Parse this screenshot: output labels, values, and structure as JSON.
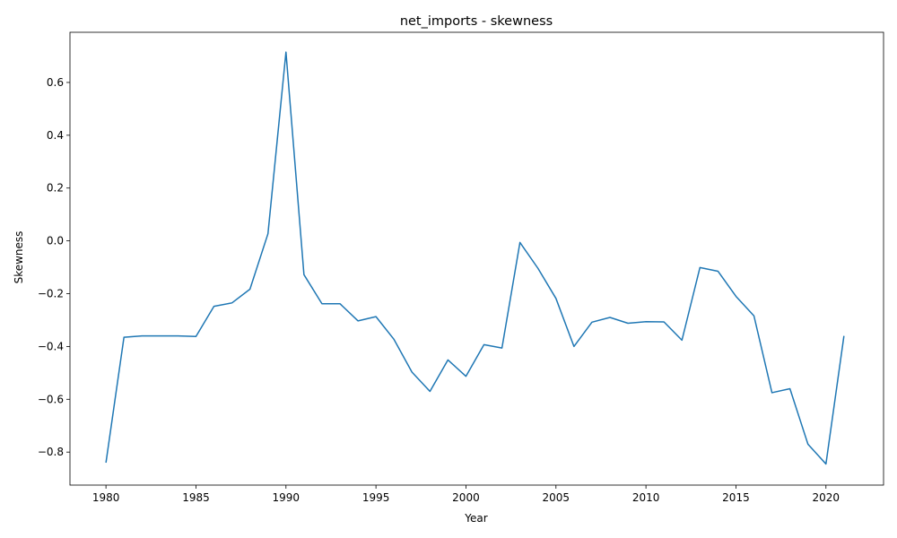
{
  "chart_data": {
    "type": "line",
    "title": "net_imports - skewness",
    "xlabel": "Year",
    "ylabel": "Skewness",
    "xlim": [
      1978,
      2023.2
    ],
    "ylim": [
      -0.925,
      0.79
    ],
    "xticks": [
      1980,
      1985,
      1990,
      1995,
      2000,
      2005,
      2010,
      2015,
      2020
    ],
    "yticks": [
      -0.8,
      -0.6,
      -0.4,
      -0.2,
      0.0,
      0.2,
      0.4,
      0.6
    ],
    "ytick_labels": [
      "−0.8",
      "−0.6",
      "−0.4",
      "−0.2",
      "0.0",
      "0.2",
      "0.4",
      "0.6"
    ],
    "grid": false,
    "line_color": "#1f77b4",
    "series": [
      {
        "x": [
          1980,
          1981,
          1982,
          1983,
          1984,
          1985,
          1986,
          1987,
          1988,
          1989,
          1990,
          1991,
          1992,
          1993,
          1994,
          1995,
          1996,
          1997,
          1998,
          1999,
          2000,
          2001,
          2002,
          2003,
          2004,
          2005,
          2006,
          2007,
          2008,
          2009,
          2010,
          2011,
          2012,
          2013,
          2014,
          2015,
          2016,
          2017,
          2018,
          2019,
          2020,
          2021
        ],
        "values": [
          -0.84,
          -0.365,
          -0.36,
          -0.36,
          -0.36,
          -0.362,
          -0.248,
          -0.235,
          -0.183,
          0.027,
          0.715,
          -0.128,
          -0.238,
          -0.238,
          -0.303,
          -0.287,
          -0.373,
          -0.497,
          -0.57,
          -0.451,
          -0.513,
          -0.393,
          -0.406,
          -0.006,
          -0.104,
          -0.218,
          -0.4,
          -0.308,
          -0.29,
          -0.312,
          -0.306,
          -0.307,
          -0.376,
          -0.101,
          -0.115,
          -0.21,
          -0.284,
          -0.575,
          -0.56,
          -0.77,
          -0.845,
          -0.36
        ]
      }
    ]
  }
}
